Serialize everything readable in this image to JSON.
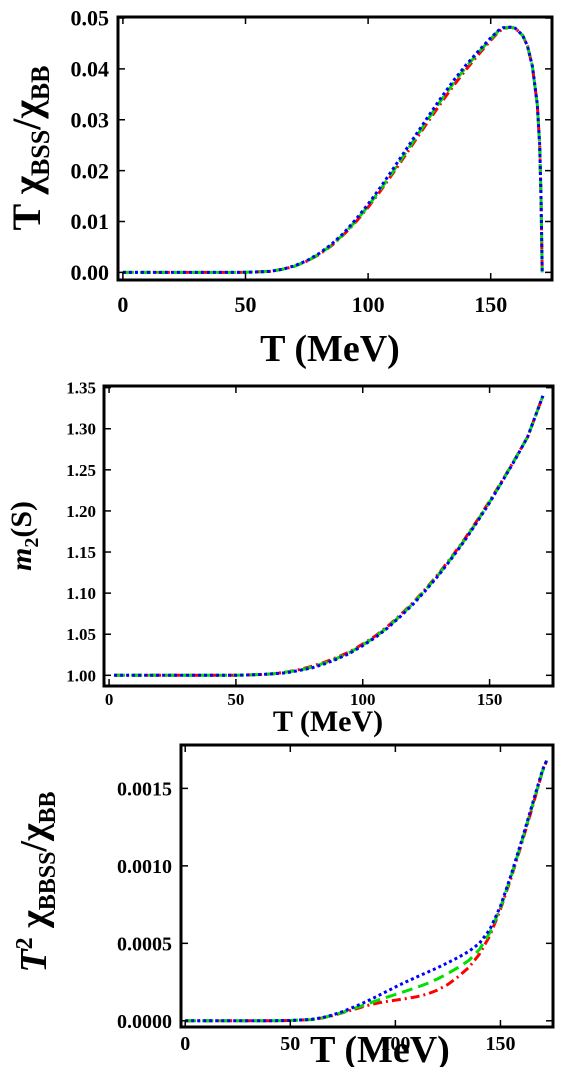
{
  "chart_data": [
    {
      "type": "line",
      "xlabel": "T (MeV)",
      "ylabel": "T χBSS/χBB",
      "ylabel_parts": {
        "base": "T χ",
        "sub": "BSS",
        "mid": "/χ",
        "sub2": "BB"
      },
      "xlim": [
        -2,
        175
      ],
      "ylim": [
        -0.0015,
        0.0502
      ],
      "xticks": [
        0,
        50,
        100,
        150
      ],
      "xtick_labels": [
        "0",
        "50",
        "100",
        "150"
      ],
      "yticks": [
        0.0,
        0.01,
        0.02,
        0.03,
        0.04,
        0.05
      ],
      "ytick_labels": [
        "0.00",
        "0.01",
        "0.02",
        "0.03",
        "0.04",
        "0.05"
      ],
      "series": [
        {
          "color": "#ff0000",
          "dash": "dashdot",
          "x": [
            0,
            20,
            40,
            50,
            60,
            65,
            70,
            75,
            80,
            85,
            90,
            95,
            100,
            105,
            110,
            115,
            120,
            125,
            130,
            135,
            140,
            145,
            150,
            153,
            155,
            158,
            160,
            163,
            165,
            167,
            169,
            170,
            170.5,
            171
          ],
          "y": [
            0,
            0,
            0,
            2e-05,
            0.0002,
            0.0006,
            0.0012,
            0.0022,
            0.0035,
            0.0052,
            0.0074,
            0.0099,
            0.0128,
            0.016,
            0.0194,
            0.0229,
            0.0265,
            0.03,
            0.0335,
            0.0368,
            0.0399,
            0.0428,
            0.0456,
            0.0472,
            0.0479,
            0.0482,
            0.048,
            0.0466,
            0.0445,
            0.0405,
            0.033,
            0.025,
            0.015,
            0
          ]
        },
        {
          "color": "#00e000",
          "dash": "dash",
          "x": [
            0,
            20,
            40,
            50,
            60,
            65,
            70,
            75,
            80,
            85,
            90,
            95,
            100,
            105,
            110,
            115,
            120,
            125,
            130,
            135,
            140,
            145,
            150,
            153,
            155,
            158,
            160,
            163,
            165,
            167,
            169,
            170,
            170.5,
            171
          ],
          "y": [
            0,
            0,
            0,
            2e-05,
            0.0002,
            0.0006,
            0.0012,
            0.0022,
            0.0036,
            0.0053,
            0.0075,
            0.0101,
            0.013,
            0.0163,
            0.0197,
            0.0233,
            0.0269,
            0.0305,
            0.034,
            0.0373,
            0.0404,
            0.0432,
            0.0459,
            0.0474,
            0.048,
            0.0482,
            0.048,
            0.0466,
            0.0445,
            0.0405,
            0.033,
            0.025,
            0.015,
            0
          ]
        },
        {
          "color": "#0000ff",
          "dash": "dot",
          "x": [
            0,
            20,
            40,
            50,
            60,
            65,
            70,
            75,
            80,
            85,
            90,
            95,
            100,
            105,
            110,
            115,
            120,
            125,
            130,
            135,
            140,
            145,
            150,
            153,
            155,
            158,
            160,
            163,
            165,
            167,
            169,
            170,
            170.5,
            171
          ],
          "y": [
            0,
            0,
            0,
            2e-05,
            0.0002,
            0.0006,
            0.0013,
            0.0023,
            0.0037,
            0.0055,
            0.0077,
            0.0104,
            0.0134,
            0.0167,
            0.0202,
            0.0238,
            0.0274,
            0.031,
            0.0345,
            0.0378,
            0.0408,
            0.0435,
            0.0461,
            0.0475,
            0.0481,
            0.0482,
            0.048,
            0.0466,
            0.0445,
            0.0405,
            0.033,
            0.025,
            0.015,
            0
          ]
        }
      ]
    },
    {
      "type": "line",
      "xlabel": "T (MeV)",
      "ylabel": "m2(S)",
      "ylabel_parts": {
        "base": "m",
        "sub": "2",
        "tail": "(S)"
      },
      "xlim": [
        -2,
        175
      ],
      "ylim": [
        0.987,
        1.352
      ],
      "xticks": [
        0,
        50,
        100,
        150
      ],
      "xtick_labels": [
        "0",
        "50",
        "100",
        "150"
      ],
      "yticks": [
        1.0,
        1.05,
        1.1,
        1.15,
        1.2,
        1.25,
        1.3,
        1.35
      ],
      "ytick_labels": [
        "1.00",
        "1.05",
        "1.10",
        "1.15",
        "1.20",
        "1.25",
        "1.30",
        "1.35"
      ],
      "series": [
        {
          "color": "#ff0000",
          "dash": "dashdot",
          "x": [
            2,
            20,
            40,
            50,
            60,
            65,
            70,
            75,
            80,
            85,
            90,
            95,
            100,
            105,
            110,
            115,
            120,
            125,
            130,
            135,
            140,
            145,
            150,
            155,
            160,
            165,
            171
          ],
          "y": [
            1.0,
            1.0,
            1.0,
            1.0,
            1.001,
            1.002,
            1.004,
            1.007,
            1.011,
            1.016,
            1.022,
            1.029,
            1.038,
            1.048,
            1.06,
            1.074,
            1.089,
            1.106,
            1.124,
            1.144,
            1.165,
            1.188,
            1.212,
            1.237,
            1.263,
            1.29,
            1.34
          ]
        },
        {
          "color": "#00e000",
          "dash": "dash",
          "x": [
            2,
            20,
            40,
            50,
            60,
            65,
            70,
            75,
            80,
            85,
            90,
            95,
            100,
            105,
            110,
            115,
            120,
            125,
            130,
            135,
            140,
            145,
            150,
            155,
            160,
            165,
            171
          ],
          "y": [
            1.0,
            1.0,
            1.0,
            1.0,
            1.001,
            1.002,
            1.004,
            1.006,
            1.01,
            1.015,
            1.021,
            1.028,
            1.037,
            1.047,
            1.059,
            1.073,
            1.088,
            1.105,
            1.123,
            1.143,
            1.164,
            1.187,
            1.211,
            1.236,
            1.263,
            1.29,
            1.34
          ]
        },
        {
          "color": "#0000ff",
          "dash": "dot",
          "x": [
            2,
            20,
            40,
            50,
            60,
            65,
            70,
            75,
            80,
            85,
            90,
            95,
            100,
            105,
            110,
            115,
            120,
            125,
            130,
            135,
            140,
            145,
            150,
            155,
            160,
            165,
            171
          ],
          "y": [
            1.0,
            1.0,
            1.0,
            1.0,
            1.001,
            1.002,
            1.003,
            1.006,
            1.009,
            1.014,
            1.02,
            1.027,
            1.036,
            1.046,
            1.058,
            1.072,
            1.087,
            1.104,
            1.122,
            1.142,
            1.163,
            1.186,
            1.21,
            1.236,
            1.262,
            1.29,
            1.34
          ]
        }
      ]
    },
    {
      "type": "line",
      "xlabel": "T (MeV)",
      "ylabel": "T2 χBBSS/χBB",
      "ylabel_parts": {
        "base": "T",
        "sup": "2",
        "mid": " χ",
        "sub": "BBSS",
        "mid2": "/χ",
        "sub2": "BB"
      },
      "xlim": [
        -2,
        175
      ],
      "ylim": [
        -4e-05,
        0.00178
      ],
      "xticks": [
        0,
        50,
        100,
        150
      ],
      "xtick_labels": [
        "0",
        "50",
        "100",
        "150"
      ],
      "yticks": [
        0.0,
        0.0005,
        0.001,
        0.0015
      ],
      "ytick_labels": [
        "0.0000",
        "0.0005",
        "0.0010",
        "0.0015"
      ],
      "series": [
        {
          "color": "#ff0000",
          "dash": "dashdot",
          "x": [
            0,
            20,
            40,
            50,
            60,
            65,
            70,
            75,
            80,
            85,
            90,
            95,
            100,
            105,
            110,
            115,
            120,
            125,
            130,
            135,
            140,
            145,
            150,
            155,
            160,
            165,
            170,
            172
          ],
          "y": [
            0,
            0,
            0,
            2e-06,
            8e-06,
            1.8e-05,
            3.3e-05,
            5.2e-05,
            7.2e-05,
            9.2e-05,
            0.00011,
            0.000123,
            0.000133,
            0.000143,
            0.000155,
            0.000172,
            0.000198,
            0.000235,
            0.000285,
            0.000345,
            0.00043,
            0.00055,
            0.00072,
            0.00092,
            0.00114,
            0.00137,
            0.00161,
            0.00168
          ]
        },
        {
          "color": "#00e000",
          "dash": "dash",
          "x": [
            0,
            20,
            40,
            50,
            60,
            65,
            70,
            75,
            80,
            85,
            90,
            95,
            100,
            105,
            110,
            115,
            120,
            125,
            130,
            135,
            140,
            145,
            150,
            155,
            160,
            165,
            170,
            172
          ],
          "y": [
            0,
            0,
            0,
            2e-06,
            8e-06,
            1.8e-05,
            3.4e-05,
            5.5e-05,
            7.8e-05,
            0.000101,
            0.000125,
            0.000148,
            0.00017,
            0.000192,
            0.000215,
            0.00024,
            0.00027,
            0.000305,
            0.000345,
            0.00039,
            0.00046,
            0.00057,
            0.00073,
            0.00093,
            0.00115,
            0.00138,
            0.00161,
            0.00168
          ]
        },
        {
          "color": "#0000ff",
          "dash": "dot",
          "x": [
            0,
            20,
            40,
            50,
            60,
            65,
            70,
            75,
            80,
            85,
            90,
            95,
            100,
            105,
            110,
            115,
            120,
            125,
            130,
            135,
            140,
            145,
            150,
            155,
            160,
            165,
            170,
            172
          ],
          "y": [
            0,
            0,
            0,
            2e-06,
            9e-06,
            2e-05,
            3.7e-05,
            6e-05,
            8.7e-05,
            0.000117,
            0.00015,
            0.000184,
            0.000218,
            0.000251,
            0.000282,
            0.000312,
            0.000342,
            0.000375,
            0.00041,
            0.000448,
            0.0005,
            0.00059,
            0.00074,
            0.00094,
            0.00116,
            0.00139,
            0.00162,
            0.00168
          ]
        }
      ]
    }
  ]
}
